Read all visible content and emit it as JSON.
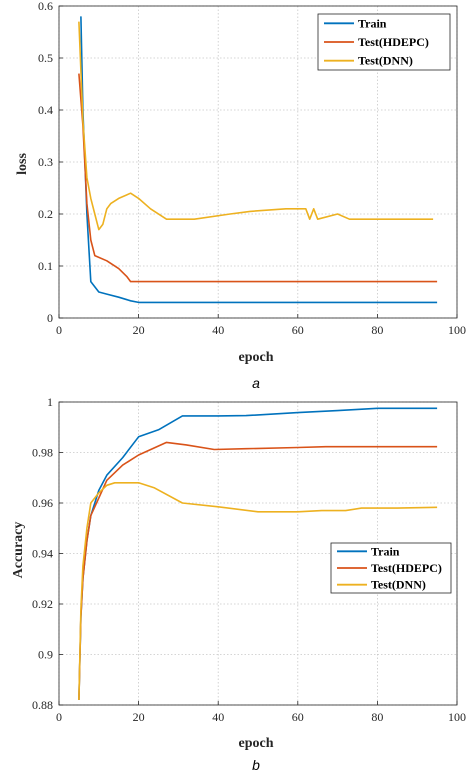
{
  "chart_data": [
    {
      "type": "line",
      "xlabel": "epoch",
      "ylabel": "loss",
      "xlim": [
        0,
        100
      ],
      "ylim": [
        0,
        0.6
      ],
      "xticks": [
        "0",
        "20",
        "40",
        "60",
        "80",
        "100"
      ],
      "yticks": [
        "0",
        "0.1",
        "0.2",
        "0.3",
        "0.4",
        "0.5",
        "0.6"
      ],
      "grid": true,
      "legend_position": "top-right",
      "caption": "a",
      "series": [
        {
          "name": "Train",
          "color": "#0072BD",
          "x": [
            5.5,
            6,
            7,
            8,
            10,
            12,
            15,
            18,
            20,
            40,
            60,
            80,
            95
          ],
          "y": [
            0.58,
            0.4,
            0.2,
            0.07,
            0.05,
            0.046,
            0.04,
            0.033,
            0.03,
            0.03,
            0.03,
            0.03,
            0.03
          ]
        },
        {
          "name": "Test(HDEPC)",
          "color": "#D95319",
          "x": [
            5,
            6,
            7,
            8,
            9,
            12,
            15,
            17,
            18,
            20,
            40,
            60,
            80,
            95
          ],
          "y": [
            0.47,
            0.37,
            0.22,
            0.15,
            0.12,
            0.11,
            0.095,
            0.08,
            0.07,
            0.07,
            0.07,
            0.07,
            0.07,
            0.07
          ]
        },
        {
          "name": "Test(DNN)",
          "color": "#EDB120",
          "x": [
            5,
            6,
            7,
            8,
            9,
            10,
            11,
            12,
            13,
            15,
            18,
            20,
            23,
            27,
            34,
            43,
            48,
            57,
            62,
            63,
            64,
            65,
            70,
            73,
            80,
            94
          ],
          "y": [
            0.57,
            0.38,
            0.27,
            0.23,
            0.2,
            0.17,
            0.18,
            0.21,
            0.22,
            0.23,
            0.24,
            0.23,
            0.21,
            0.19,
            0.19,
            0.2,
            0.205,
            0.21,
            0.21,
            0.19,
            0.21,
            0.19,
            0.2,
            0.19,
            0.19,
            0.19
          ]
        }
      ]
    },
    {
      "type": "line",
      "xlabel": "epoch",
      "ylabel": "Accuracy",
      "xlim": [
        0,
        100
      ],
      "ylim": [
        0.88,
        1
      ],
      "xticks": [
        "0",
        "20",
        "40",
        "60",
        "80",
        "100"
      ],
      "yticks": [
        "0.88",
        "0.9",
        "0.92",
        "0.94",
        "0.96",
        "0.98",
        "1"
      ],
      "grid": true,
      "legend_position": "center-right",
      "caption": "b",
      "series": [
        {
          "name": "Train",
          "color": "#0072BD",
          "x": [
            5,
            5.5,
            6,
            7,
            8,
            10,
            12,
            16,
            20,
            25,
            31,
            40,
            47,
            60,
            70,
            80,
            95
          ],
          "y": [
            0.882,
            0.915,
            0.93,
            0.945,
            0.955,
            0.965,
            0.971,
            0.978,
            0.9862,
            0.989,
            0.9945,
            0.9945,
            0.9946,
            0.9958,
            0.9966,
            0.9975,
            0.9975
          ]
        },
        {
          "name": "Test(HDEPC)",
          "color": "#D95319",
          "x": [
            5,
            5.5,
            6,
            7,
            8,
            10,
            12,
            16,
            20,
            27,
            32,
            39,
            47,
            60,
            67,
            80,
            95
          ],
          "y": [
            0.882,
            0.915,
            0.93,
            0.945,
            0.955,
            0.962,
            0.969,
            0.975,
            0.979,
            0.984,
            0.983,
            0.9812,
            0.9815,
            0.982,
            0.9823,
            0.9823,
            0.9823
          ]
        },
        {
          "name": "Test(DNN)",
          "color": "#EDB120",
          "x": [
            5,
            5.5,
            6,
            7,
            8,
            10,
            12,
            14,
            20,
            24,
            31,
            40,
            50,
            57,
            60,
            66,
            72,
            76,
            85,
            95
          ],
          "y": [
            0.882,
            0.918,
            0.935,
            0.95,
            0.96,
            0.964,
            0.967,
            0.968,
            0.968,
            0.966,
            0.96,
            0.9585,
            0.9565,
            0.9565,
            0.9565,
            0.957,
            0.957,
            0.958,
            0.958,
            0.9583
          ]
        }
      ]
    }
  ]
}
